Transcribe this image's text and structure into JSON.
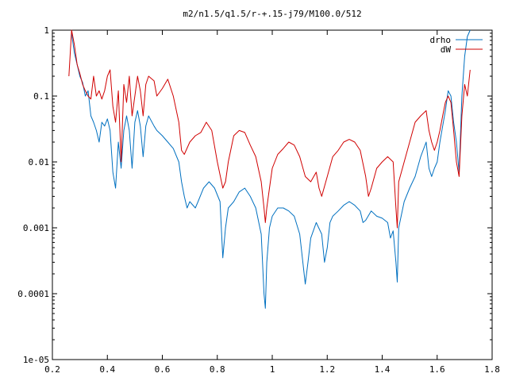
{
  "chart_data": {
    "type": "line",
    "title": "m2/n1.5/q1.5/r-+.15-j79/M100.0/512",
    "xlabel": "",
    "ylabel": "",
    "xlim": [
      0.2,
      1.8
    ],
    "ylim": [
      1e-05,
      1
    ],
    "yscale": "log",
    "grid": false,
    "legend_position": "top-right",
    "x_ticks": [
      "0.2",
      "0.4",
      "0.6",
      "0.8",
      "1",
      "1.2",
      "1.4",
      "1.6",
      "1.8"
    ],
    "y_ticks": [
      "1e-05",
      "0.0001",
      "0.001",
      "0.01",
      "0.1",
      "1"
    ],
    "series": [
      {
        "name": "drho",
        "color": "#0070c0",
        "points": [
          [
            0.27,
            0.9
          ],
          [
            0.28,
            0.45
          ],
          [
            0.29,
            0.3
          ],
          [
            0.3,
            0.2
          ],
          [
            0.31,
            0.16
          ],
          [
            0.32,
            0.1
          ],
          [
            0.33,
            0.12
          ],
          [
            0.34,
            0.05
          ],
          [
            0.35,
            0.04
          ],
          [
            0.36,
            0.03
          ],
          [
            0.37,
            0.02
          ],
          [
            0.38,
            0.04
          ],
          [
            0.39,
            0.035
          ],
          [
            0.4,
            0.045
          ],
          [
            0.41,
            0.03
          ],
          [
            0.42,
            0.007
          ],
          [
            0.43,
            0.004
          ],
          [
            0.44,
            0.02
          ],
          [
            0.45,
            0.008
          ],
          [
            0.46,
            0.03
          ],
          [
            0.47,
            0.05
          ],
          [
            0.48,
            0.03
          ],
          [
            0.49,
            0.008
          ],
          [
            0.5,
            0.04
          ],
          [
            0.51,
            0.06
          ],
          [
            0.52,
            0.035
          ],
          [
            0.53,
            0.012
          ],
          [
            0.54,
            0.035
          ],
          [
            0.55,
            0.05
          ],
          [
            0.57,
            0.035
          ],
          [
            0.58,
            0.03
          ],
          [
            0.6,
            0.025
          ],
          [
            0.62,
            0.02
          ],
          [
            0.64,
            0.016
          ],
          [
            0.66,
            0.01
          ],
          [
            0.67,
            0.005
          ],
          [
            0.68,
            0.003
          ],
          [
            0.69,
            0.002
          ],
          [
            0.7,
            0.0025
          ],
          [
            0.72,
            0.002
          ],
          [
            0.73,
            0.0025
          ],
          [
            0.75,
            0.004
          ],
          [
            0.77,
            0.005
          ],
          [
            0.79,
            0.004
          ],
          [
            0.81,
            0.0025
          ],
          [
            0.82,
            0.00035
          ],
          [
            0.83,
            0.001
          ],
          [
            0.84,
            0.002
          ],
          [
            0.86,
            0.0025
          ],
          [
            0.88,
            0.0035
          ],
          [
            0.9,
            0.004
          ],
          [
            0.92,
            0.003
          ],
          [
            0.94,
            0.002
          ],
          [
            0.96,
            0.0008
          ],
          [
            0.97,
            0.0001
          ],
          [
            0.975,
            6e-05
          ],
          [
            0.98,
            0.0003
          ],
          [
            0.99,
            0.001
          ],
          [
            1.0,
            0.0015
          ],
          [
            1.02,
            0.002
          ],
          [
            1.04,
            0.002
          ],
          [
            1.06,
            0.0018
          ],
          [
            1.08,
            0.0015
          ],
          [
            1.1,
            0.0008
          ],
          [
            1.12,
            0.00014
          ],
          [
            1.13,
            0.0003
          ],
          [
            1.14,
            0.0007
          ],
          [
            1.16,
            0.0012
          ],
          [
            1.18,
            0.0008
          ],
          [
            1.19,
            0.0003
          ],
          [
            1.2,
            0.0005
          ],
          [
            1.21,
            0.0012
          ],
          [
            1.22,
            0.0015
          ],
          [
            1.24,
            0.0018
          ],
          [
            1.26,
            0.0022
          ],
          [
            1.28,
            0.0025
          ],
          [
            1.3,
            0.0022
          ],
          [
            1.32,
            0.0018
          ],
          [
            1.33,
            0.0012
          ],
          [
            1.34,
            0.0013
          ],
          [
            1.36,
            0.0018
          ],
          [
            1.38,
            0.0015
          ],
          [
            1.4,
            0.0014
          ],
          [
            1.42,
            0.0012
          ],
          [
            1.43,
            0.0007
          ],
          [
            1.44,
            0.0009
          ],
          [
            1.45,
            0.0003
          ],
          [
            1.455,
            0.00015
          ],
          [
            1.46,
            0.001
          ],
          [
            1.48,
            0.0025
          ],
          [
            1.5,
            0.004
          ],
          [
            1.52,
            0.006
          ],
          [
            1.54,
            0.012
          ],
          [
            1.56,
            0.02
          ],
          [
            1.57,
            0.008
          ],
          [
            1.58,
            0.006
          ],
          [
            1.59,
            0.008
          ],
          [
            1.6,
            0.01
          ],
          [
            1.61,
            0.02
          ],
          [
            1.62,
            0.035
          ],
          [
            1.63,
            0.06
          ],
          [
            1.64,
            0.12
          ],
          [
            1.65,
            0.1
          ],
          [
            1.66,
            0.04
          ],
          [
            1.67,
            0.02
          ],
          [
            1.68,
            0.007
          ],
          [
            1.69,
            0.1
          ],
          [
            1.7,
            0.4
          ],
          [
            1.71,
            0.8
          ],
          [
            1.72,
            1.0
          ]
        ]
      },
      {
        "name": "dW",
        "color": "#d00000",
        "points": [
          [
            0.26,
            0.2
          ],
          [
            0.27,
            1.0
          ],
          [
            0.28,
            0.6
          ],
          [
            0.29,
            0.3
          ],
          [
            0.3,
            0.22
          ],
          [
            0.31,
            0.15
          ],
          [
            0.32,
            0.12
          ],
          [
            0.33,
            0.1
          ],
          [
            0.34,
            0.09
          ],
          [
            0.35,
            0.2
          ],
          [
            0.36,
            0.1
          ],
          [
            0.37,
            0.12
          ],
          [
            0.38,
            0.09
          ],
          [
            0.39,
            0.12
          ],
          [
            0.4,
            0.2
          ],
          [
            0.41,
            0.25
          ],
          [
            0.42,
            0.07
          ],
          [
            0.43,
            0.04
          ],
          [
            0.44,
            0.12
          ],
          [
            0.45,
            0.01
          ],
          [
            0.46,
            0.15
          ],
          [
            0.47,
            0.08
          ],
          [
            0.48,
            0.2
          ],
          [
            0.49,
            0.05
          ],
          [
            0.5,
            0.1
          ],
          [
            0.51,
            0.2
          ],
          [
            0.52,
            0.12
          ],
          [
            0.53,
            0.05
          ],
          [
            0.54,
            0.15
          ],
          [
            0.55,
            0.2
          ],
          [
            0.57,
            0.17
          ],
          [
            0.58,
            0.1
          ],
          [
            0.6,
            0.13
          ],
          [
            0.62,
            0.18
          ],
          [
            0.64,
            0.1
          ],
          [
            0.66,
            0.04
          ],
          [
            0.67,
            0.015
          ],
          [
            0.68,
            0.013
          ],
          [
            0.7,
            0.02
          ],
          [
            0.72,
            0.025
          ],
          [
            0.74,
            0.028
          ],
          [
            0.76,
            0.04
          ],
          [
            0.78,
            0.03
          ],
          [
            0.8,
            0.01
          ],
          [
            0.82,
            0.004
          ],
          [
            0.83,
            0.005
          ],
          [
            0.84,
            0.01
          ],
          [
            0.86,
            0.025
          ],
          [
            0.88,
            0.03
          ],
          [
            0.9,
            0.028
          ],
          [
            0.92,
            0.018
          ],
          [
            0.94,
            0.012
          ],
          [
            0.96,
            0.005
          ],
          [
            0.97,
            0.002
          ],
          [
            0.975,
            0.0012
          ],
          [
            0.98,
            0.002
          ],
          [
            0.99,
            0.004
          ],
          [
            1.0,
            0.008
          ],
          [
            1.02,
            0.013
          ],
          [
            1.04,
            0.016
          ],
          [
            1.06,
            0.02
          ],
          [
            1.08,
            0.018
          ],
          [
            1.1,
            0.012
          ],
          [
            1.12,
            0.006
          ],
          [
            1.14,
            0.005
          ],
          [
            1.16,
            0.007
          ],
          [
            1.17,
            0.004
          ],
          [
            1.18,
            0.003
          ],
          [
            1.2,
            0.006
          ],
          [
            1.22,
            0.012
          ],
          [
            1.24,
            0.015
          ],
          [
            1.26,
            0.02
          ],
          [
            1.28,
            0.022
          ],
          [
            1.3,
            0.02
          ],
          [
            1.32,
            0.015
          ],
          [
            1.34,
            0.006
          ],
          [
            1.35,
            0.003
          ],
          [
            1.36,
            0.004
          ],
          [
            1.38,
            0.008
          ],
          [
            1.4,
            0.01
          ],
          [
            1.42,
            0.012
          ],
          [
            1.44,
            0.01
          ],
          [
            1.45,
            0.002
          ],
          [
            1.455,
            0.001
          ],
          [
            1.46,
            0.005
          ],
          [
            1.48,
            0.01
          ],
          [
            1.5,
            0.02
          ],
          [
            1.52,
            0.04
          ],
          [
            1.54,
            0.05
          ],
          [
            1.56,
            0.06
          ],
          [
            1.57,
            0.03
          ],
          [
            1.58,
            0.02
          ],
          [
            1.59,
            0.015
          ],
          [
            1.6,
            0.02
          ],
          [
            1.61,
            0.03
          ],
          [
            1.62,
            0.05
          ],
          [
            1.63,
            0.08
          ],
          [
            1.64,
            0.1
          ],
          [
            1.65,
            0.08
          ],
          [
            1.66,
            0.03
          ],
          [
            1.67,
            0.01
          ],
          [
            1.68,
            0.006
          ],
          [
            1.69,
            0.05
          ],
          [
            1.7,
            0.15
          ],
          [
            1.71,
            0.1
          ],
          [
            1.72,
            0.25
          ]
        ]
      }
    ]
  }
}
